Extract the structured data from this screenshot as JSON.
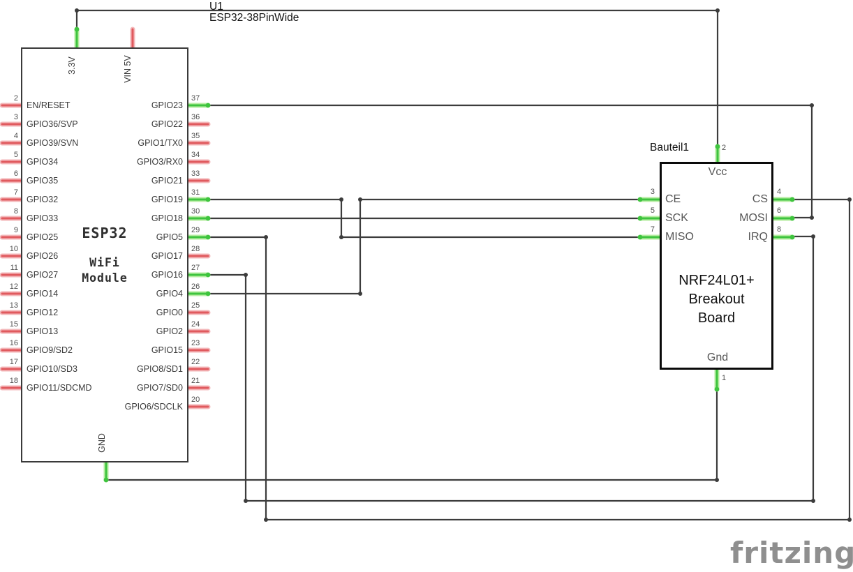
{
  "title": {
    "ref": "U1",
    "part": "ESP32-38PinWide"
  },
  "esp32": {
    "chip_name": "ESP32",
    "chip_subtitle_1": "WiFi",
    "chip_subtitle_2": "Module",
    "top_pins": [
      {
        "label": "3.3V",
        "state": "connected"
      },
      {
        "label": "VIN 5V",
        "state": "unconnected"
      }
    ],
    "bottom_pins": [
      {
        "label": "GND",
        "state": "connected"
      }
    ],
    "left_pins": [
      {
        "num": "2",
        "label": "EN/RESET",
        "state": "unconnected"
      },
      {
        "num": "3",
        "label": "GPIO36/SVP",
        "state": "unconnected"
      },
      {
        "num": "4",
        "label": "GPIO39/SVN",
        "state": "unconnected"
      },
      {
        "num": "5",
        "label": "GPIO34",
        "state": "unconnected"
      },
      {
        "num": "6",
        "label": "GPIO35",
        "state": "unconnected"
      },
      {
        "num": "7",
        "label": "GPIO32",
        "state": "unconnected"
      },
      {
        "num": "8",
        "label": "GPIO33",
        "state": "unconnected"
      },
      {
        "num": "9",
        "label": "GPIO25",
        "state": "unconnected"
      },
      {
        "num": "10",
        "label": "GPIO26",
        "state": "unconnected"
      },
      {
        "num": "11",
        "label": "GPIO27",
        "state": "unconnected"
      },
      {
        "num": "12",
        "label": "GPIO14",
        "state": "unconnected"
      },
      {
        "num": "13",
        "label": "GPIO12",
        "state": "unconnected"
      },
      {
        "num": "15",
        "label": "GPIO13",
        "state": "unconnected"
      },
      {
        "num": "16",
        "label": "GPIO9/SD2",
        "state": "unconnected"
      },
      {
        "num": "17",
        "label": "GPIO10/SD3",
        "state": "unconnected"
      },
      {
        "num": "18",
        "label": "GPIO11/SDCMD",
        "state": "unconnected"
      }
    ],
    "right_pins": [
      {
        "num": "37",
        "label": "GPIO23",
        "state": "connected"
      },
      {
        "num": "36",
        "label": "GPIO22",
        "state": "unconnected"
      },
      {
        "num": "35",
        "label": "GPIO1/TX0",
        "state": "unconnected"
      },
      {
        "num": "34",
        "label": "GPIO3/RX0",
        "state": "unconnected"
      },
      {
        "num": "33",
        "label": "GPIO21",
        "state": "unconnected"
      },
      {
        "num": "31",
        "label": "GPIO19",
        "state": "connected"
      },
      {
        "num": "30",
        "label": "GPIO18",
        "state": "connected"
      },
      {
        "num": "29",
        "label": "GPIO5",
        "state": "connected"
      },
      {
        "num": "28",
        "label": "GPIO17",
        "state": "unconnected"
      },
      {
        "num": "27",
        "label": "GPIO16",
        "state": "connected"
      },
      {
        "num": "26",
        "label": "GPIO4",
        "state": "connected"
      },
      {
        "num": "25",
        "label": "GPIO0",
        "state": "unconnected"
      },
      {
        "num": "24",
        "label": "GPIO2",
        "state": "unconnected"
      },
      {
        "num": "23",
        "label": "GPIO15",
        "state": "unconnected"
      },
      {
        "num": "22",
        "label": "GPIO8/SD1",
        "state": "unconnected"
      },
      {
        "num": "21",
        "label": "GPIO7/SD0",
        "state": "unconnected"
      },
      {
        "num": "20",
        "label": "GPIO6/SDCLK",
        "state": "unconnected"
      }
    ]
  },
  "nrf": {
    "ref": "Bauteil1",
    "name_line_1": "NRF24L01+",
    "name_line_2": "Breakout",
    "name_line_3": "Board",
    "top_pin": {
      "num": "2",
      "label": "Vcc",
      "state": "connected"
    },
    "bottom_pin": {
      "num": "1",
      "label": "Gnd",
      "state": "connected"
    },
    "left_pins": [
      {
        "num": "3",
        "label": "CE",
        "state": "connected"
      },
      {
        "num": "5",
        "label": "SCK",
        "state": "connected"
      },
      {
        "num": "7",
        "label": "MISO",
        "state": "connected"
      }
    ],
    "right_pins": [
      {
        "num": "4",
        "label": "CS",
        "state": "connected"
      },
      {
        "num": "6",
        "label": "MOSI",
        "state": "connected"
      },
      {
        "num": "8",
        "label": "IRQ",
        "state": "connected"
      }
    ]
  },
  "watermark": "fritzing",
  "colors": {
    "wire": "#3c3c3c",
    "pin_connected": "#3ec43e",
    "pin_connected_halo": "#b6eda1",
    "pin_unconnected": "#e05a5e",
    "pin_unconnected_halo": "#f3b7b9",
    "board_border_esp32": "#3a3a3a",
    "board_border_nrf": "#0a0a0a",
    "label_text": "#3a3a3a",
    "pin_number_text": "#4f4f4f",
    "nrf_pin_text": "#565656",
    "watermark_text": "#8f8f8f"
  }
}
